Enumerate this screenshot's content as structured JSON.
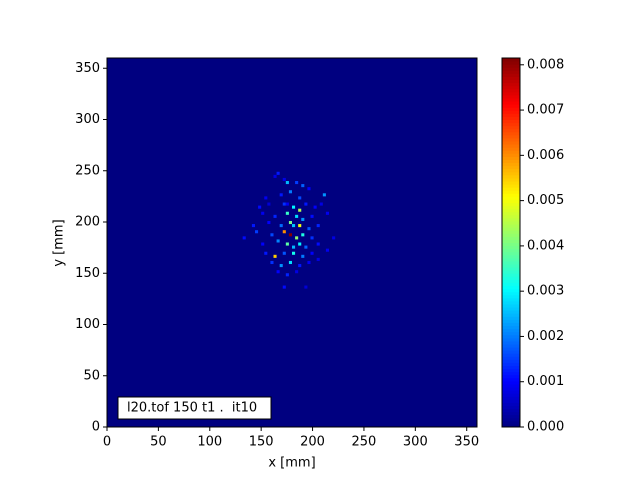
{
  "chart_data": {
    "type": "heatmap",
    "xlabel": "x [mm]",
    "ylabel": "y [mm]",
    "annotation": "l20.tof 150 t1 .  it10",
    "xlim": [
      0,
      360
    ],
    "ylim": [
      0,
      360
    ],
    "xticks": [
      0,
      50,
      100,
      150,
      200,
      250,
      300,
      350
    ],
    "yticks": [
      0,
      50,
      100,
      150,
      200,
      250,
      300,
      350
    ],
    "colormap": "jet",
    "clim": [
      0,
      0.00815
    ],
    "cticks": [
      {
        "value": 0,
        "label": "0.000"
      },
      {
        "value": 0.001,
        "label": "0.001"
      },
      {
        "value": 0.002,
        "label": "0.002"
      },
      {
        "value": 0.003,
        "label": "0.003"
      },
      {
        "value": 0.004,
        "label": "0.004"
      },
      {
        "value": 0.005,
        "label": "0.005"
      },
      {
        "value": 0.006,
        "label": "0.006"
      },
      {
        "value": 0.007,
        "label": "0.007"
      },
      {
        "value": 0.008,
        "label": "0.008"
      }
    ],
    "x": [
      165,
      162,
      174,
      183,
      189,
      195,
      210,
      153,
      168,
      177,
      186,
      147,
      156,
      171,
      180,
      186,
      192,
      201,
      207,
      150,
      162,
      174,
      183,
      189,
      198,
      213,
      141,
      156,
      168,
      177,
      186,
      195,
      204,
      132,
      144,
      159,
      171,
      177,
      183,
      189,
      198,
      219,
      150,
      165,
      174,
      180,
      186,
      192,
      204,
      153,
      162,
      171,
      180,
      189,
      198,
      213,
      159,
      168,
      177,
      186,
      195,
      165,
      174,
      183,
      171,
      192,
      204,
      180,
      174,
      171
    ],
    "y": [
      246,
      243,
      237,
      237,
      234,
      231,
      225,
      222,
      225,
      228,
      222,
      213,
      216,
      216,
      213,
      210,
      216,
      213,
      216,
      207,
      204,
      207,
      204,
      201,
      204,
      207,
      195,
      198,
      195,
      198,
      195,
      192,
      195,
      183,
      189,
      186,
      189,
      186,
      183,
      186,
      183,
      183,
      177,
      180,
      177,
      174,
      177,
      174,
      177,
      168,
      165,
      168,
      168,
      165,
      168,
      171,
      159,
      156,
      159,
      156,
      159,
      150,
      147,
      150,
      135,
      135,
      162,
      195,
      216,
      240
    ],
    "values": [
      0.0012,
      0.0008,
      0.0025,
      0.0015,
      0.0018,
      0.001,
      0.0022,
      0.0009,
      0.0012,
      0.002,
      0.0016,
      0.0011,
      0.0007,
      0.0014,
      0.003,
      0.0045,
      0.0012,
      0.001,
      0.0008,
      0.0009,
      0.0013,
      0.0035,
      0.0028,
      0.0022,
      0.0011,
      0.0009,
      0.0012,
      0.001,
      0.0019,
      0.004,
      0.005,
      0.0017,
      0.0013,
      0.0011,
      0.0015,
      0.0016,
      0.006,
      0.0081,
      0.0042,
      0.0033,
      0.0014,
      0.0008,
      0.001,
      0.0021,
      0.0038,
      0.0025,
      0.003,
      0.0018,
      0.0011,
      0.0012,
      0.0055,
      0.0017,
      0.0032,
      0.002,
      0.001,
      0.0009,
      0.0014,
      0.0022,
      0.0028,
      0.0012,
      0.0009,
      0.001,
      0.0013,
      0.0008,
      0.0011,
      0.0007,
      0.0008,
      0.0026,
      0.0009,
      0.0008
    ]
  }
}
